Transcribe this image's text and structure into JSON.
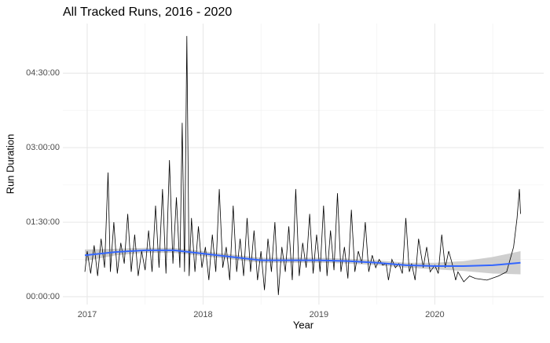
{
  "chart_data": {
    "type": "line",
    "title": "All Tracked Runs, 2016 - 2020",
    "x_label": "Year",
    "y_label": "Run Duration",
    "xlim": [
      2016.79,
      2020.94
    ],
    "ylim": [
      -9.5,
      330
    ],
    "xticks": [
      2017,
      2018,
      2019,
      2020
    ],
    "x_minor_ticks": [
      2017.5,
      2018.5,
      2019.5,
      2020.5
    ],
    "yticks": [
      {
        "value": 0,
        "label": "00:00:00"
      },
      {
        "value": 90,
        "label": "01:30:00"
      },
      {
        "value": 180,
        "label": "03:00:00"
      },
      {
        "value": 270,
        "label": "04:30:00"
      }
    ],
    "y_minor_ticks": [
      45,
      135,
      225
    ],
    "grid": true,
    "color": "#000000",
    "x": [
      2016.98,
      2017.0,
      2017.03,
      2017.06,
      2017.09,
      2017.12,
      2017.15,
      2017.18,
      2017.2,
      2017.23,
      2017.26,
      2017.29,
      2017.32,
      2017.35,
      2017.38,
      2017.41,
      2017.44,
      2017.47,
      2017.5,
      2017.53,
      2017.56,
      2017.59,
      2017.62,
      2017.65,
      2017.68,
      2017.71,
      2017.74,
      2017.77,
      2017.8,
      2017.82,
      2017.84,
      2017.86,
      2017.88,
      2017.9,
      2017.93,
      2017.96,
      2017.99,
      2018.02,
      2018.05,
      2018.08,
      2018.11,
      2018.14,
      2018.17,
      2018.2,
      2018.23,
      2018.26,
      2018.29,
      2018.32,
      2018.35,
      2018.38,
      2018.41,
      2018.44,
      2018.47,
      2018.5,
      2018.53,
      2018.56,
      2018.59,
      2018.62,
      2018.65,
      2018.68,
      2018.71,
      2018.74,
      2018.77,
      2018.8,
      2018.83,
      2018.86,
      2018.89,
      2018.92,
      2018.95,
      2018.98,
      2019.01,
      2019.04,
      2019.07,
      2019.1,
      2019.13,
      2019.16,
      2019.19,
      2019.22,
      2019.25,
      2019.28,
      2019.31,
      2019.34,
      2019.37,
      2019.4,
      2019.43,
      2019.46,
      2019.49,
      2019.52,
      2019.55,
      2019.58,
      2019.6,
      2019.63,
      2019.66,
      2019.69,
      2019.72,
      2019.75,
      2019.78,
      2019.8,
      2019.83,
      2019.86,
      2019.9,
      2019.93,
      2019.96,
      2020.0,
      2020.03,
      2020.06,
      2020.09,
      2020.12,
      2020.15,
      2020.18,
      2020.2,
      2020.25,
      2020.3,
      2020.35,
      2020.45,
      2020.55,
      2020.62,
      2020.68,
      2020.71,
      2020.73,
      2020.74
    ],
    "values": [
      30,
      55,
      28,
      62,
      25,
      70,
      35,
      150,
      30,
      90,
      28,
      65,
      40,
      100,
      30,
      75,
      25,
      55,
      32,
      80,
      30,
      110,
      35,
      130,
      28,
      165,
      40,
      120,
      35,
      210,
      30,
      315,
      25,
      95,
      30,
      85,
      35,
      60,
      20,
      75,
      30,
      130,
      35,
      60,
      20,
      110,
      30,
      70,
      25,
      95,
      30,
      80,
      20,
      55,
      8,
      70,
      30,
      90,
      2,
      60,
      30,
      85,
      20,
      130,
      25,
      65,
      35,
      100,
      28,
      75,
      30,
      110,
      25,
      80,
      32,
      125,
      30,
      60,
      22,
      105,
      30,
      55,
      40,
      90,
      30,
      50,
      35,
      45,
      38,
      40,
      20,
      45,
      35,
      40,
      28,
      95,
      30,
      40,
      20,
      70,
      35,
      60,
      30,
      38,
      28,
      75,
      35,
      55,
      40,
      20,
      30,
      18,
      25,
      22,
      20,
      25,
      30,
      60,
      95,
      130,
      100
    ],
    "smooth": {
      "color": "#3366ff",
      "band_color": "#bfbfbf",
      "x": [
        2016.98,
        2017.25,
        2017.5,
        2017.75,
        2018.0,
        2018.25,
        2018.5,
        2018.75,
        2019.0,
        2019.25,
        2019.5,
        2019.75,
        2020.0,
        2020.25,
        2020.5,
        2020.74
      ],
      "values": [
        50,
        54,
        56,
        56,
        52,
        48,
        44,
        44,
        44,
        43,
        41,
        38,
        37,
        37,
        38,
        41
      ],
      "lower": [
        43,
        50,
        53,
        53,
        49,
        45,
        41,
        41,
        41,
        40,
        38,
        35,
        33,
        31,
        28,
        27
      ],
      "upper": [
        57,
        58,
        59,
        59,
        55,
        51,
        47,
        47,
        47,
        46,
        44,
        41,
        41,
        43,
        48,
        55
      ]
    }
  }
}
